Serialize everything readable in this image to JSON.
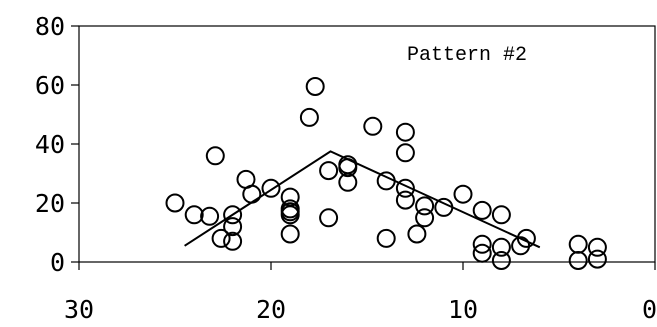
{
  "chart_data": {
    "type": "scatter",
    "title": "",
    "xlabel": "",
    "ylabel": "",
    "annotation": "Pattern #2",
    "xlim": [
      30,
      0
    ],
    "ylim": [
      0,
      80
    ],
    "x_ticks": [
      30,
      20,
      10,
      0
    ],
    "y_ticks": [
      0,
      20,
      40,
      60,
      80
    ],
    "x_tick_labels": [
      "30",
      "20",
      "10",
      "0"
    ],
    "y_tick_labels": [
      "0",
      "20",
      "40",
      "60",
      "80"
    ],
    "grid": false,
    "points": [
      [
        25,
        20
      ],
      [
        24,
        16
      ],
      [
        23.2,
        15.5
      ],
      [
        22.9,
        36
      ],
      [
        22.6,
        8
      ],
      [
        22,
        16
      ],
      [
        22,
        12
      ],
      [
        22,
        7
      ],
      [
        21.3,
        28
      ],
      [
        21,
        23
      ],
      [
        20,
        25
      ],
      [
        19,
        22
      ],
      [
        19,
        18
      ],
      [
        19,
        17
      ],
      [
        19,
        16
      ],
      [
        19,
        9.5
      ],
      [
        18,
        49
      ],
      [
        17.7,
        59.5
      ],
      [
        17,
        15
      ],
      [
        17,
        31
      ],
      [
        16,
        33
      ],
      [
        16,
        32
      ],
      [
        16,
        27
      ],
      [
        14.7,
        46
      ],
      [
        14,
        27.5
      ],
      [
        14,
        8
      ],
      [
        13,
        44
      ],
      [
        13,
        37
      ],
      [
        13,
        25
      ],
      [
        13,
        21
      ],
      [
        12.4,
        9.5
      ],
      [
        12,
        19
      ],
      [
        12,
        15
      ],
      [
        11,
        18.5
      ],
      [
        10,
        23
      ],
      [
        9,
        17.5
      ],
      [
        9,
        6
      ],
      [
        9,
        3
      ],
      [
        8,
        16
      ],
      [
        8,
        5
      ],
      [
        8,
        0.5
      ],
      [
        7,
        5.5
      ],
      [
        6.7,
        8
      ],
      [
        4,
        6
      ],
      [
        4,
        0.5
      ],
      [
        3,
        5
      ],
      [
        3,
        1
      ]
    ],
    "trend_line": [
      [
        24.5,
        5.5
      ],
      [
        16.9,
        37.5
      ],
      [
        6,
        5
      ]
    ],
    "marker": "open-circle",
    "colors": {
      "marker_stroke": "#000000",
      "line": "#000000",
      "axis": "#000000"
    }
  }
}
